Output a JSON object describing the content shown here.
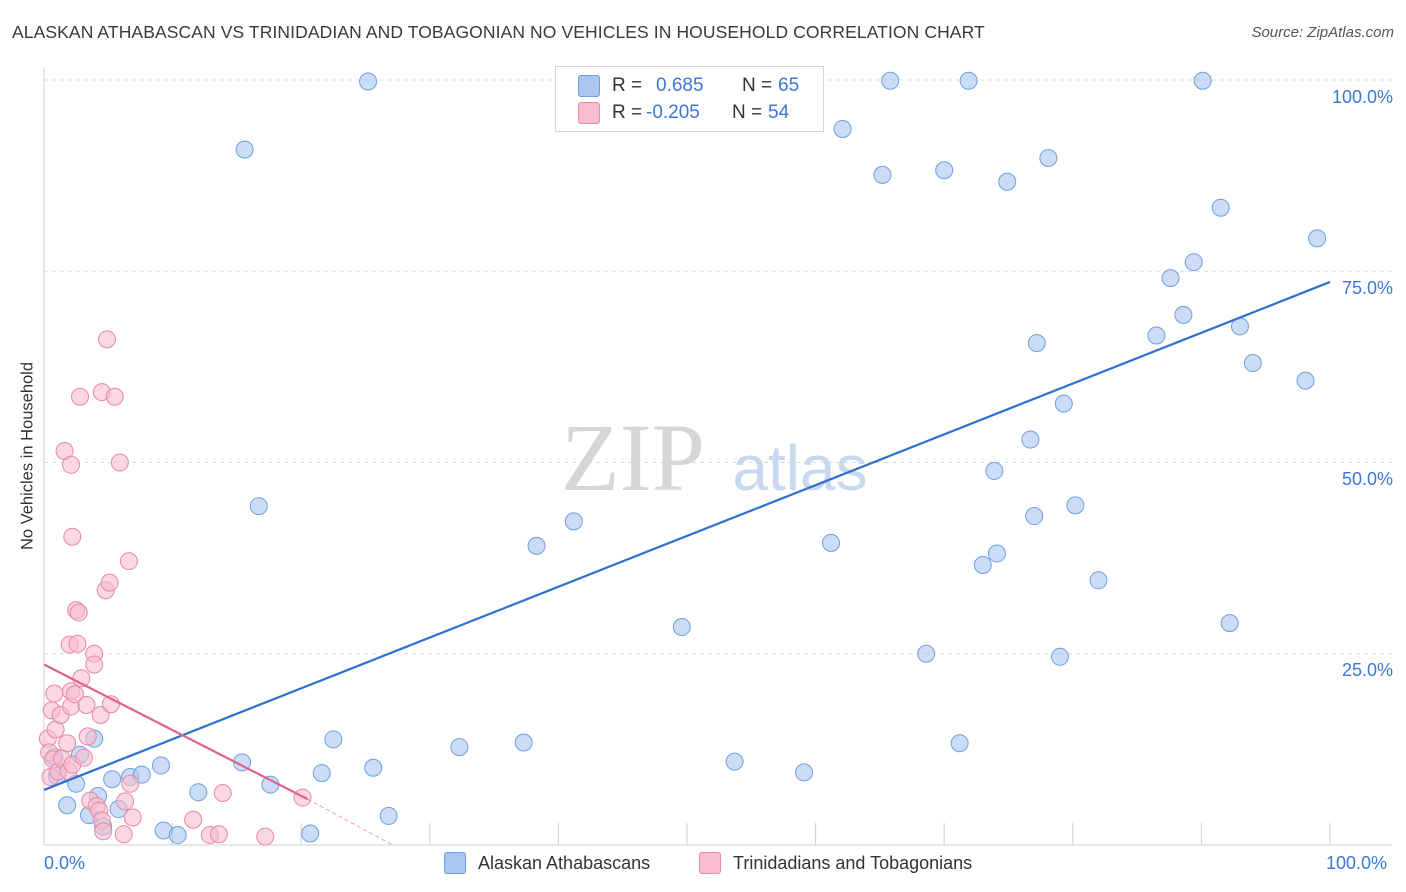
{
  "title": "ALASKAN ATHABASCAN VS TRINIDADIAN AND TOBAGONIAN NO VEHICLES IN HOUSEHOLD CORRELATION CHART",
  "source": "Source: ZipAtlas.com",
  "watermark": {
    "zip": "ZIP",
    "atlas": "atlas"
  },
  "legend": {
    "rows": [
      {
        "r_label": "R =",
        "r_value": "0.685",
        "n_label": "N =",
        "n_value": "65"
      },
      {
        "r_label": "R =",
        "r_value": "-0.205",
        "n_label": "N =",
        "n_value": "54"
      }
    ]
  },
  "chart_data": {
    "type": "scatter",
    "title": "ALASKAN ATHABASCAN VS TRINIDADIAN AND TOBAGONIAN NO VEHICLES IN HOUSEHOLD CORRELATION CHART",
    "xlabel": "",
    "ylabel": "No Vehicles in Household",
    "xlim": [
      0,
      100
    ],
    "ylim": [
      0,
      100
    ],
    "x_tick_labels": [
      "0.0%",
      "100.0%"
    ],
    "y_tick_labels": [
      "25.0%",
      "50.0%",
      "75.0%",
      "100.0%"
    ],
    "y_ticks": [
      25,
      50,
      75,
      100
    ],
    "grid": true,
    "legend_position": "bottom",
    "series": [
      {
        "name": "Alaskan Athabascans",
        "color": "#a8c6f0",
        "edge": "#6f9fdc",
        "trend": {
          "x": [
            0,
            100
          ],
          "y": [
            7.2,
            73.6
          ],
          "color": "#2e6fcf"
        },
        "points": [
          [
            1.0,
            9.0
          ],
          [
            0.8,
            11.5
          ],
          [
            1.8,
            5.2
          ],
          [
            2.5,
            8.0
          ],
          [
            2.8,
            11.8
          ],
          [
            3.5,
            3.9
          ],
          [
            3.9,
            13.9
          ],
          [
            4.2,
            6.4
          ],
          [
            4.6,
            2.4
          ],
          [
            5.3,
            8.6
          ],
          [
            5.8,
            4.7
          ],
          [
            6.7,
            8.9
          ],
          [
            7.6,
            9.2
          ],
          [
            9.1,
            10.4
          ],
          [
            9.3,
            1.9
          ],
          [
            10.4,
            1.3
          ],
          [
            12.0,
            6.9
          ],
          [
            15.6,
            90.9
          ],
          [
            15.4,
            10.8
          ],
          [
            16.7,
            44.3
          ],
          [
            17.6,
            7.9
          ],
          [
            20.7,
            1.5
          ],
          [
            21.6,
            9.4
          ],
          [
            22.5,
            13.8
          ],
          [
            25.2,
            99.8
          ],
          [
            25.6,
            10.1
          ],
          [
            26.8,
            3.8
          ],
          [
            32.3,
            12.8
          ],
          [
            37.3,
            13.4
          ],
          [
            38.3,
            39.1
          ],
          [
            41.2,
            42.3
          ],
          [
            49.6,
            28.5
          ],
          [
            53.7,
            10.9
          ],
          [
            59.1,
            9.5
          ],
          [
            61.2,
            39.5
          ],
          [
            62.1,
            93.6
          ],
          [
            65.2,
            87.6
          ],
          [
            65.8,
            99.9
          ],
          [
            68.6,
            25.0
          ],
          [
            70.0,
            88.2
          ],
          [
            71.2,
            13.3
          ],
          [
            71.9,
            99.9
          ],
          [
            73.0,
            36.6
          ],
          [
            74.1,
            38.1
          ],
          [
            73.9,
            48.9
          ],
          [
            74.9,
            86.7
          ],
          [
            76.7,
            53.0
          ],
          [
            77.0,
            43.0
          ],
          [
            77.2,
            65.6
          ],
          [
            78.1,
            89.8
          ],
          [
            79.0,
            24.6
          ],
          [
            79.3,
            57.7
          ],
          [
            80.2,
            44.4
          ],
          [
            82.0,
            34.6
          ],
          [
            86.5,
            66.6
          ],
          [
            87.6,
            74.1
          ],
          [
            88.6,
            69.3
          ],
          [
            89.4,
            76.2
          ],
          [
            90.1,
            99.9
          ],
          [
            91.5,
            83.3
          ],
          [
            92.2,
            29.0
          ],
          [
            93.0,
            67.8
          ],
          [
            94.0,
            63.0
          ],
          [
            99.0,
            79.3
          ],
          [
            98.1,
            60.7
          ]
        ]
      },
      {
        "name": "Trinidadians and Tobagonians",
        "color": "#f7bccd",
        "edge": "#e889a6",
        "trend": {
          "x": [
            0,
            20.5
          ],
          "y": [
            23.6,
            6.0
          ],
          "color": "#e06290",
          "dashed_to": [
            27,
            0.1
          ]
        },
        "points": [
          [
            0.3,
            13.9
          ],
          [
            0.4,
            12.1
          ],
          [
            0.5,
            8.9
          ],
          [
            0.6,
            17.6
          ],
          [
            0.7,
            11.2
          ],
          [
            0.8,
            19.8
          ],
          [
            0.9,
            15.1
          ],
          [
            1.1,
            9.6
          ],
          [
            1.3,
            17.0
          ],
          [
            1.4,
            11.3
          ],
          [
            1.6,
            51.5
          ],
          [
            1.8,
            13.3
          ],
          [
            1.9,
            9.7
          ],
          [
            2.0,
            26.2
          ],
          [
            2.1,
            20.1
          ],
          [
            2.1,
            18.1
          ],
          [
            2.1,
            49.7
          ],
          [
            2.2,
            40.3
          ],
          [
            2.2,
            10.5
          ],
          [
            2.4,
            19.7
          ],
          [
            2.5,
            30.7
          ],
          [
            2.6,
            26.3
          ],
          [
            2.7,
            30.4
          ],
          [
            2.8,
            58.6
          ],
          [
            2.9,
            21.8
          ],
          [
            3.1,
            11.4
          ],
          [
            3.3,
            18.3
          ],
          [
            3.4,
            14.2
          ],
          [
            3.6,
            5.8
          ],
          [
            3.9,
            25.0
          ],
          [
            3.9,
            23.6
          ],
          [
            4.1,
            5.1
          ],
          [
            4.3,
            4.5
          ],
          [
            4.4,
            17.0
          ],
          [
            4.5,
            59.2
          ],
          [
            4.5,
            3.2
          ],
          [
            4.6,
            1.8
          ],
          [
            4.8,
            33.3
          ],
          [
            4.9,
            66.1
          ],
          [
            5.1,
            34.3
          ],
          [
            5.2,
            18.4
          ],
          [
            5.5,
            58.6
          ],
          [
            5.9,
            50.0
          ],
          [
            6.2,
            1.4
          ],
          [
            6.3,
            5.7
          ],
          [
            6.6,
            37.1
          ],
          [
            6.7,
            8.0
          ],
          [
            6.9,
            3.6
          ],
          [
            11.6,
            3.3
          ],
          [
            12.9,
            1.3
          ],
          [
            13.6,
            1.4
          ],
          [
            13.9,
            6.8
          ],
          [
            17.2,
            1.1
          ],
          [
            20.1,
            6.2
          ]
        ]
      }
    ]
  }
}
